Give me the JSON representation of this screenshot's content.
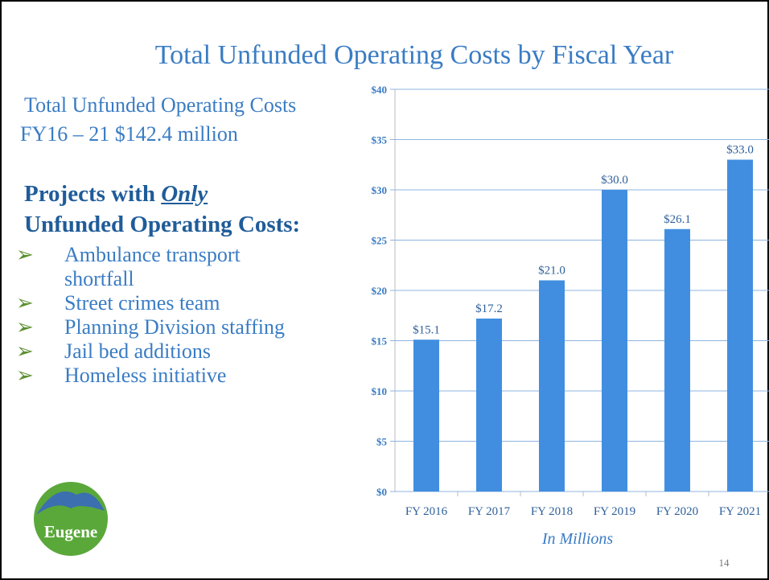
{
  "slide": {
    "title": "Total Unfunded Operating Costs by Fiscal Year",
    "summary": [
      "Total Unfunded Operating Costs",
      "FY16 – 21  $142.4 million"
    ],
    "heading": [
      "Projects with ",
      "Only",
      "Unfunded Operating Costs:"
    ],
    "bullets": [
      "Ambulance transport shortfall",
      "Street crimes team",
      "Planning Division staffing",
      "Jail bed additions",
      "Homeless initiative"
    ],
    "logo": "Eugene",
    "page_number": "14"
  },
  "chart_data": {
    "type": "bar",
    "x_label": "In Millions",
    "categories": [
      "FY 2016",
      "FY 2017",
      "FY 2018",
      "FY 2019",
      "FY 2020",
      "FY 2021"
    ],
    "values": [
      15.1,
      17.2,
      21.0,
      30.0,
      26.1,
      33.0
    ],
    "value_labels": [
      "$15.1",
      "$17.2",
      "$21.0",
      "$30.0",
      "$26.1",
      "$33.0"
    ],
    "color": "#418ee0",
    "ylim": [
      0,
      40
    ],
    "yticks": [
      {
        "value": 0,
        "label": "$0"
      },
      {
        "value": 5,
        "label": "$5"
      },
      {
        "value": 10,
        "label": "$10"
      },
      {
        "value": 15,
        "label": "$15"
      },
      {
        "value": 20,
        "label": "$20"
      },
      {
        "value": 25,
        "label": "$25"
      },
      {
        "value": 30,
        "label": "$30"
      },
      {
        "value": 35,
        "label": "$35"
      },
      {
        "value": 40,
        "label": "$40"
      }
    ],
    "grid": true
  }
}
